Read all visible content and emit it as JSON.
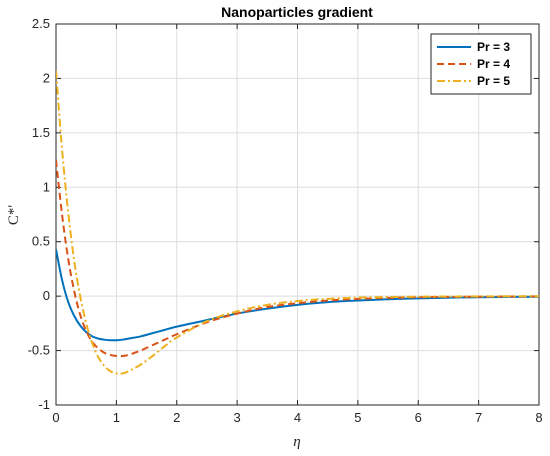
{
  "chart_data": {
    "type": "line",
    "title": "Nanoparticles gradient",
    "xlabel": "η",
    "ylabel": "C*'",
    "xlim": [
      0,
      8
    ],
    "ylim": [
      -1,
      2.5
    ],
    "xticks": [
      0,
      1,
      2,
      3,
      4,
      5,
      6,
      7,
      8
    ],
    "yticks": [
      -1,
      -0.5,
      0,
      0.5,
      1,
      1.5,
      2,
      2.5
    ],
    "xtick_labels": [
      "0",
      "1",
      "2",
      "3",
      "4",
      "5",
      "6",
      "7",
      "8"
    ],
    "ytick_labels": [
      "-1",
      "-0.5",
      "0",
      "0.5",
      "1",
      "1.5",
      "2",
      "2.5"
    ],
    "grid": true,
    "legend_position": "top-right",
    "series": [
      {
        "name": "Pr = 3",
        "color": "#0072BD",
        "dash": "solid",
        "x": [
          0,
          0.1,
          0.2,
          0.3,
          0.4,
          0.5,
          0.6,
          0.7,
          0.8,
          0.9,
          1.0,
          1.1,
          1.2,
          1.4,
          1.6,
          1.8,
          2.0,
          2.5,
          3.0,
          3.5,
          4.0,
          4.5,
          5.0,
          5.5,
          6.0,
          7.0,
          8.0
        ],
        "y": [
          0.43,
          0.15,
          -0.05,
          -0.18,
          -0.27,
          -0.33,
          -0.37,
          -0.39,
          -0.4,
          -0.405,
          -0.405,
          -0.4,
          -0.39,
          -0.37,
          -0.34,
          -0.31,
          -0.28,
          -0.22,
          -0.16,
          -0.115,
          -0.08,
          -0.055,
          -0.04,
          -0.028,
          -0.02,
          -0.01,
          -0.005
        ]
      },
      {
        "name": "Pr = 4",
        "color": "#D95319",
        "dash": "dashed",
        "x": [
          0,
          0.1,
          0.2,
          0.3,
          0.4,
          0.5,
          0.6,
          0.7,
          0.8,
          0.9,
          1.0,
          1.1,
          1.2,
          1.4,
          1.6,
          1.8,
          2.0,
          2.5,
          3.0,
          3.5,
          4.0,
          4.5,
          5.0,
          5.5,
          6.0,
          7.0,
          8.0
        ],
        "y": [
          1.25,
          0.75,
          0.35,
          0.05,
          -0.17,
          -0.32,
          -0.42,
          -0.48,
          -0.52,
          -0.54,
          -0.55,
          -0.55,
          -0.54,
          -0.5,
          -0.45,
          -0.4,
          -0.35,
          -0.24,
          -0.16,
          -0.1,
          -0.065,
          -0.04,
          -0.025,
          -0.016,
          -0.01,
          -0.005,
          -0.002
        ]
      },
      {
        "name": "Pr = 5",
        "color": "#EDB120",
        "dash": "dashdot",
        "x": [
          0,
          0.1,
          0.2,
          0.3,
          0.4,
          0.5,
          0.6,
          0.7,
          0.8,
          0.9,
          1.0,
          1.1,
          1.2,
          1.4,
          1.6,
          1.8,
          2.0,
          2.5,
          3.0,
          3.5,
          4.0,
          4.5,
          5.0,
          5.5,
          6.0,
          7.0,
          8.0
        ],
        "y": [
          2.07,
          1.35,
          0.78,
          0.33,
          0.0,
          -0.25,
          -0.43,
          -0.56,
          -0.64,
          -0.69,
          -0.71,
          -0.71,
          -0.69,
          -0.63,
          -0.55,
          -0.46,
          -0.38,
          -0.23,
          -0.14,
          -0.08,
          -0.045,
          -0.025,
          -0.014,
          -0.008,
          -0.005,
          -0.002,
          -0.001
        ]
      }
    ]
  }
}
